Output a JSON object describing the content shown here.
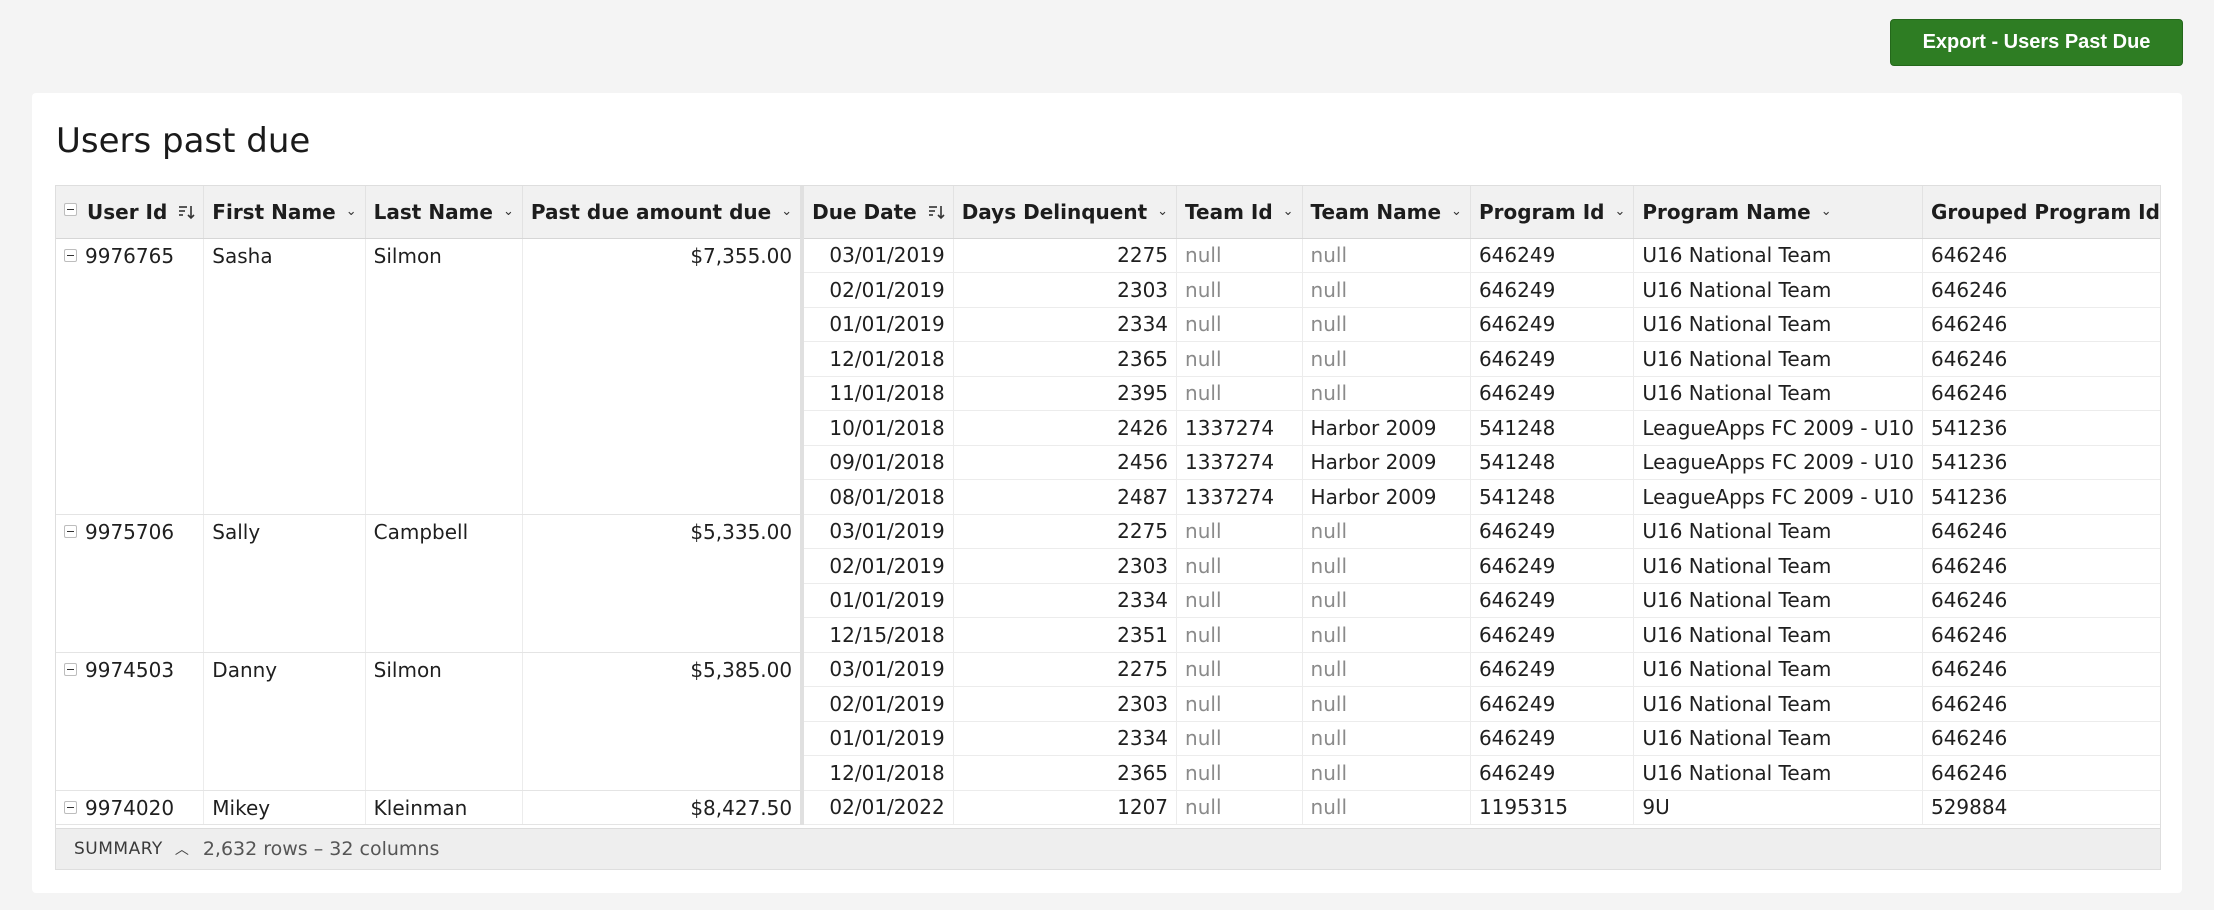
{
  "toolbar": {
    "export_label": "Export - Users Past Due"
  },
  "card": {
    "title": "Users past due"
  },
  "table": {
    "columns": [
      "User Id",
      "First Name",
      "Last Name",
      "Past due amount due",
      "Due Date",
      "Days Delinquent",
      "Team Id",
      "Team Name",
      "Program Id",
      "Program Name",
      "Grouped Program Id"
    ],
    "groups": [
      {
        "user_id": "9976765",
        "first_name": "Sasha",
        "last_name": "Silmon",
        "amount": "$7,355.00",
        "rows": [
          [
            "03/01/2019",
            "2275",
            "null",
            "null",
            "646249",
            "U16 National Team",
            "646246"
          ],
          [
            "02/01/2019",
            "2303",
            "null",
            "null",
            "646249",
            "U16 National Team",
            "646246"
          ],
          [
            "01/01/2019",
            "2334",
            "null",
            "null",
            "646249",
            "U16 National Team",
            "646246"
          ],
          [
            "12/01/2018",
            "2365",
            "null",
            "null",
            "646249",
            "U16 National Team",
            "646246"
          ],
          [
            "11/01/2018",
            "2395",
            "null",
            "null",
            "646249",
            "U16 National Team",
            "646246"
          ],
          [
            "10/01/2018",
            "2426",
            "1337274",
            "Harbor 2009",
            "541248",
            "LeagueApps FC 2009 - U10",
            "541236"
          ],
          [
            "09/01/2018",
            "2456",
            "1337274",
            "Harbor 2009",
            "541248",
            "LeagueApps FC 2009 - U10",
            "541236"
          ],
          [
            "08/01/2018",
            "2487",
            "1337274",
            "Harbor 2009",
            "541248",
            "LeagueApps FC 2009 - U10",
            "541236"
          ]
        ]
      },
      {
        "user_id": "9975706",
        "first_name": "Sally",
        "last_name": "Campbell",
        "amount": "$5,335.00",
        "rows": [
          [
            "03/01/2019",
            "2275",
            "null",
            "null",
            "646249",
            "U16 National Team",
            "646246"
          ],
          [
            "02/01/2019",
            "2303",
            "null",
            "null",
            "646249",
            "U16 National Team",
            "646246"
          ],
          [
            "01/01/2019",
            "2334",
            "null",
            "null",
            "646249",
            "U16 National Team",
            "646246"
          ],
          [
            "12/15/2018",
            "2351",
            "null",
            "null",
            "646249",
            "U16 National Team",
            "646246"
          ]
        ]
      },
      {
        "user_id": "9974503",
        "first_name": "Danny",
        "last_name": "Silmon",
        "amount": "$5,385.00",
        "rows": [
          [
            "03/01/2019",
            "2275",
            "null",
            "null",
            "646249",
            "U16 National Team",
            "646246"
          ],
          [
            "02/01/2019",
            "2303",
            "null",
            "null",
            "646249",
            "U16 National Team",
            "646246"
          ],
          [
            "01/01/2019",
            "2334",
            "null",
            "null",
            "646249",
            "U16 National Team",
            "646246"
          ],
          [
            "12/01/2018",
            "2365",
            "null",
            "null",
            "646249",
            "U16 National Team",
            "646246"
          ]
        ]
      },
      {
        "user_id": "9974020",
        "first_name": "Mikey",
        "last_name": "Kleinman",
        "amount": "$8,427.50",
        "rows": [
          [
            "02/01/2022",
            "1207",
            "null",
            "null",
            "1195315",
            "9U",
            "529884"
          ]
        ]
      }
    ]
  },
  "summary": {
    "label": "SUMMARY",
    "text": "2,632 rows – 32 columns"
  }
}
